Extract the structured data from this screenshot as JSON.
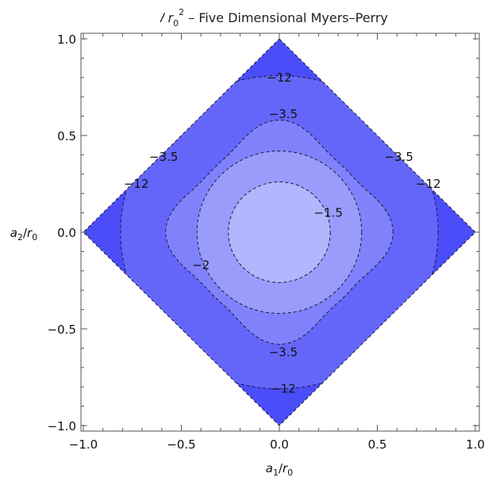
{
  "chart_data": {
    "type": "contour",
    "title": "I r0² – Five Dimensional Myers–Perry",
    "title_parts": {
      "symbol": "𝐼",
      "var": "r",
      "sub": "0",
      "sup": "2",
      "rest": " – Five Dimensional Myers–Perry"
    },
    "xlabel": "a1/r0",
    "xlabel_parts": {
      "a": "a",
      "asub": "1",
      "slash": "/",
      "r": "r",
      "rsub": "0"
    },
    "ylabel": "a2/r0",
    "ylabel_parts": {
      "a": "a",
      "asub": "2",
      "slash": "/",
      "r": "r",
      "rsub": "0"
    },
    "xlim": [
      -1.0,
      1.0
    ],
    "ylim": [
      -1.0,
      1.0
    ],
    "x_ticks": [
      "−1.0",
      "−0.5",
      "0.0",
      "0.5",
      "1.0"
    ],
    "y_ticks": [
      "−1.0",
      "−0.5",
      "0.0",
      "0.5",
      "1.0"
    ],
    "domain": "|a1| + |a2| ≤ 1",
    "contour_levels": [
      -12,
      -3.5,
      -2,
      -1.5
    ],
    "contours": [
      {
        "level": -1.5,
        "shape": "circle",
        "radius": 0.26
      },
      {
        "level": -2,
        "shape": "circle",
        "radius": 0.42
      },
      {
        "level": -3.5,
        "shape": "cusped",
        "mid_radius": 0.58,
        "diag_radius": 0.47
      },
      {
        "level": -12,
        "shape": "corner-arcs",
        "axis_radius": 0.81
      }
    ],
    "contour_labels": [
      {
        "text": "−12",
        "x": 0.0,
        "y": 0.8
      },
      {
        "text": "−3.5",
        "x": 0.02,
        "y": 0.61
      },
      {
        "text": "−3.5",
        "x": -0.59,
        "y": 0.39
      },
      {
        "text": "−12",
        "x": -0.73,
        "y": 0.25
      },
      {
        "text": "−3.5",
        "x": 0.61,
        "y": 0.39
      },
      {
        "text": "−12",
        "x": 0.76,
        "y": 0.25
      },
      {
        "text": "−1.5",
        "x": 0.25,
        "y": 0.1
      },
      {
        "text": "−2",
        "x": -0.4,
        "y": -0.17
      },
      {
        "text": "−3.5",
        "x": 0.02,
        "y": -0.62
      },
      {
        "text": "−12",
        "x": 0.02,
        "y": -0.81
      }
    ],
    "colors": {
      "band_0": "#4a4df8",
      "band_1": "#6466f9",
      "band_2": "#8082fb",
      "band_3": "#9a9cfc",
      "band_4": "#b3b5fd"
    },
    "grid": false
  }
}
